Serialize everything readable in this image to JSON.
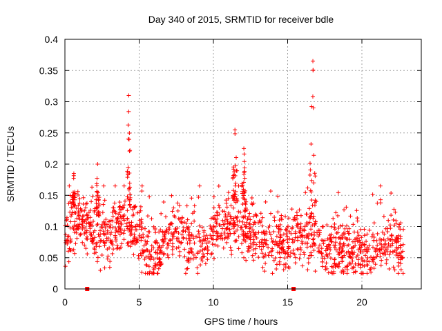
{
  "chart_data": {
    "type": "scatter",
    "title": "Day 340 of 2015, SRMTID for receiver bdle",
    "xlabel": "GPS time / hours",
    "ylabel": "SRMTID / TECUs",
    "xlim": [
      0,
      24
    ],
    "ylim": [
      0,
      0.4
    ],
    "x_ticks": [
      0,
      5,
      10,
      15,
      20
    ],
    "x_tick_labels": [
      "0",
      "5",
      "10",
      "15",
      "20"
    ],
    "y_ticks": [
      0,
      0.05,
      0.1,
      0.15,
      0.2,
      0.25,
      0.3,
      0.35,
      0.4
    ],
    "y_tick_labels": [
      "0",
      "0.05",
      "0.1",
      "0.15",
      "0.2",
      "0.25",
      "0.3",
      "0.35",
      "0.4"
    ],
    "grid": true,
    "marker": "+",
    "color": "#ff0000",
    "data_span_hours": [
      0,
      22.8
    ],
    "zero_markers_x": [
      1.5,
      15.4
    ],
    "background_level": [
      [
        0.0,
        0.08
      ],
      [
        0.5,
        0.1
      ],
      [
        1.0,
        0.11
      ],
      [
        1.5,
        0.1
      ],
      [
        2.0,
        0.09
      ],
      [
        2.5,
        0.085
      ],
      [
        3.0,
        0.085
      ],
      [
        3.5,
        0.1
      ],
      [
        4.0,
        0.11
      ],
      [
        4.5,
        0.1
      ],
      [
        5.0,
        0.09
      ],
      [
        5.5,
        0.06
      ],
      [
        6.0,
        0.05
      ],
      [
        6.5,
        0.065
      ],
      [
        7.0,
        0.085
      ],
      [
        7.5,
        0.09
      ],
      [
        8.0,
        0.085
      ],
      [
        8.5,
        0.075
      ],
      [
        9.0,
        0.07
      ],
      [
        9.5,
        0.08
      ],
      [
        10.0,
        0.095
      ],
      [
        10.5,
        0.1
      ],
      [
        11.0,
        0.105
      ],
      [
        11.5,
        0.11
      ],
      [
        12.0,
        0.095
      ],
      [
        12.5,
        0.09
      ],
      [
        13.0,
        0.09
      ],
      [
        13.5,
        0.085
      ],
      [
        14.0,
        0.08
      ],
      [
        14.5,
        0.08
      ],
      [
        15.0,
        0.075
      ],
      [
        15.5,
        0.08
      ],
      [
        16.0,
        0.085
      ],
      [
        16.5,
        0.09
      ],
      [
        17.0,
        0.07
      ],
      [
        17.5,
        0.06
      ],
      [
        18.0,
        0.065
      ],
      [
        18.5,
        0.065
      ],
      [
        19.0,
        0.06
      ],
      [
        19.5,
        0.06
      ],
      [
        20.0,
        0.055
      ],
      [
        20.5,
        0.06
      ],
      [
        21.0,
        0.065
      ],
      [
        21.5,
        0.07
      ],
      [
        22.0,
        0.07
      ],
      [
        22.5,
        0.065
      ],
      [
        22.8,
        0.06
      ]
    ],
    "spikes": [
      {
        "x": [
          0.5,
          0.7
        ],
        "peak": 0.185
      },
      {
        "x": [
          2.1,
          2.3
        ],
        "peak": 0.2
      },
      {
        "x": [
          4.2,
          4.4
        ],
        "peak": 0.31
      },
      {
        "x": [
          11.3,
          11.6
        ],
        "peak": 0.255
      },
      {
        "x": [
          11.9,
          12.2
        ],
        "peak": 0.225
      },
      {
        "x": [
          16.5,
          16.9
        ],
        "peak": 0.365
      }
    ]
  }
}
